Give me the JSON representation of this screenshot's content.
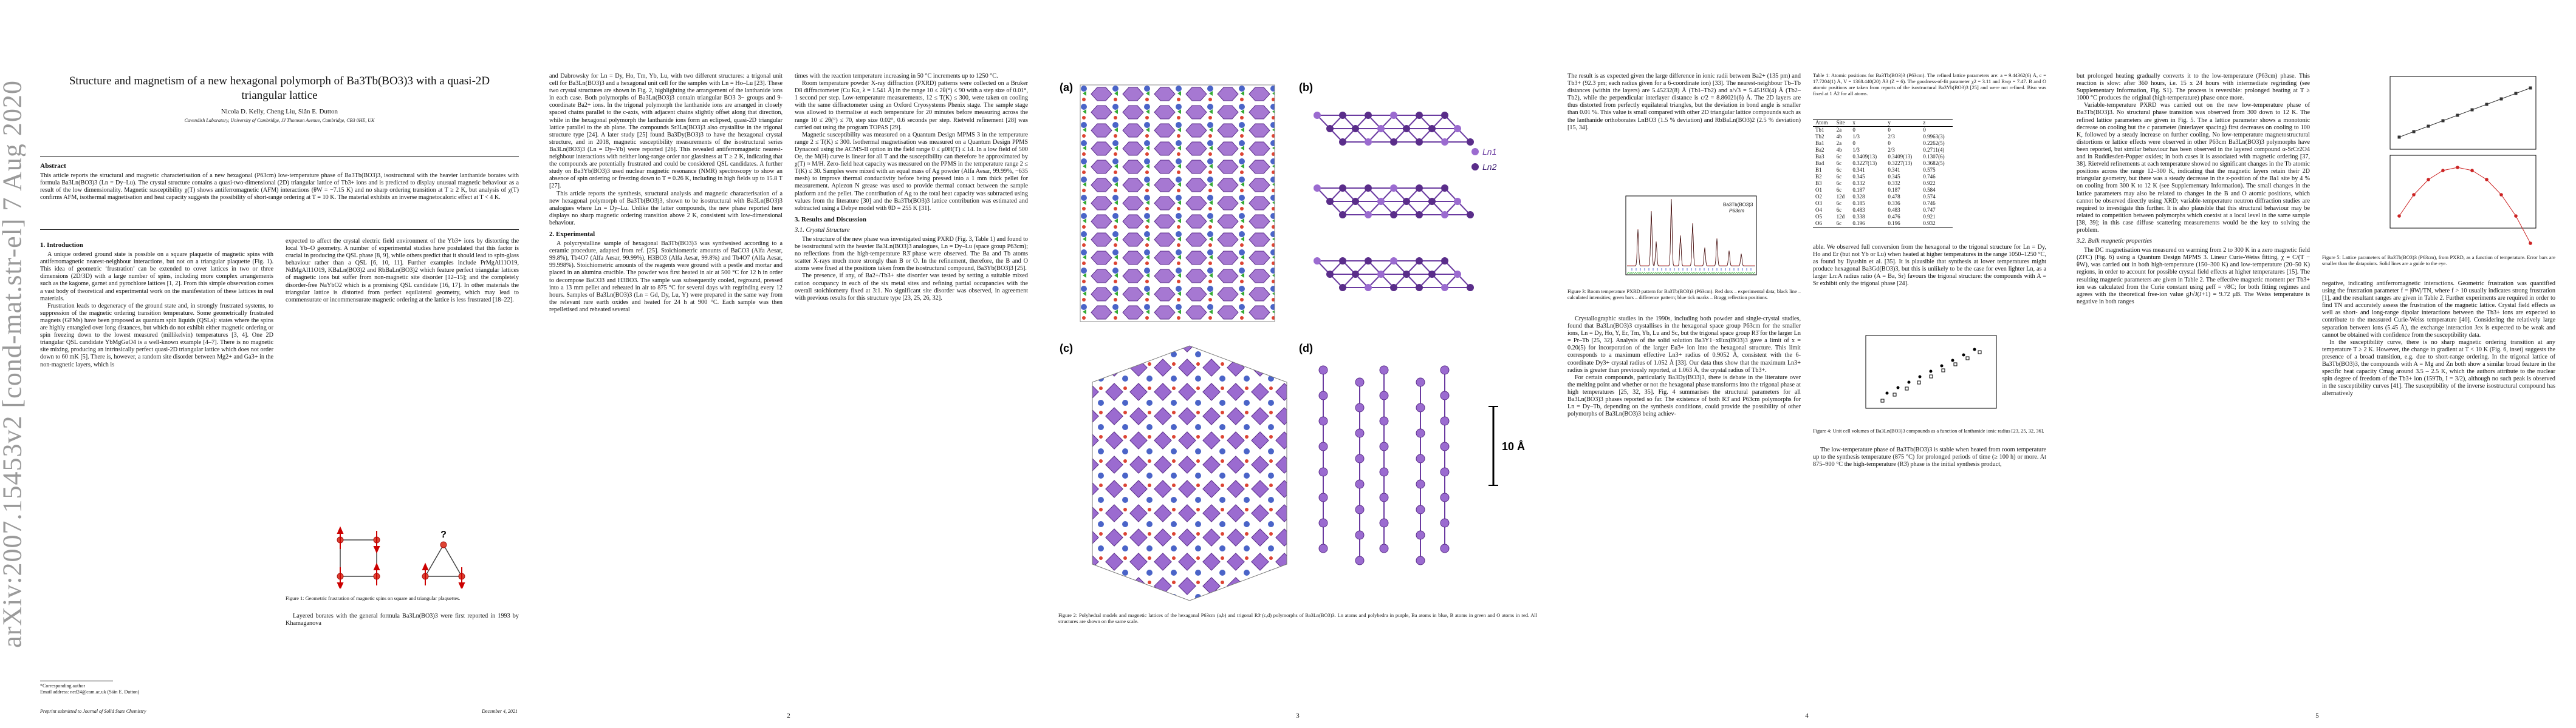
{
  "arxiv_stamp": "arXiv:2007.15453v2  [cond-mat.str-el]  7 Aug 2020",
  "page1": {
    "title": "Structure and magnetism of a new hexagonal polymorph of Ba3Tb(BO3)3 with a quasi-2D triangular lattice",
    "authors": "Nicola D. Kelly, Cheng Liu, Siân E. Dutton",
    "affiliation": "Cavendish Laboratory, University of Cambridge, JJ Thomson Avenue, Cambridge, CB3 0HE, UK",
    "abstract_heading": "Abstract",
    "abstract": "This article reports the structural and magnetic characterisation of a new hexagonal (P63cm) low-temperature phase of Ba3Tb(BO3)3, isostructural with the heavier lanthanide borates with formula Ba3Ln(BO3)3 (Ln = Dy–Lu). The crystal structure contains a quasi-two-dimensional (2D) triangular lattice of Tb3+ ions and is predicted to display unusual magnetic behaviour as a result of the low dimensionality. Magnetic susceptibility χ(T) shows antiferromagnetic (AFM) interactions (θW = −7.15 K) and no sharp ordering transition at T ≥ 2 K, but analysis of χ(T) confirms AFM, isothermal magnetisation and heat capacity suggests the possibility of short-range ordering at T = 10 K. The material exhibits an inverse magnetocaloric effect at T < 4 K.",
    "intro_heading": "1. Introduction",
    "col_left": [
      "A unique ordered ground state is possible on a square plaquette of magnetic spins with antiferromagnetic nearest-neighbour interactions, but not on a triangular plaquette (Fig. 1). This idea of geometric ‘frustration’ can be extended to cover lattices in two or three dimensions (2D/3D) with a large number of spins, including more complex arrangements such as the kagome, garnet and pyrochlore lattices [1, 2]. From this simple observation comes a vast body of theoretical and experimental work on the manifestation of these lattices in real materials.",
      "Frustration leads to degeneracy of the ground state and, in strongly frustrated systems, to suppression of the magnetic ordering transition temperature. Some geometrically frustrated magnets (GFMs) have been proposed as quantum spin liquids (QSLs): states where the spins are highly entangled over long distances, but which do not exhibit either magnetic ordering or spin freezing down to the lowest measured (millikelvin) temperatures [3, 4]. One 2D triangular QSL candidate YbMgGaO4 is a well-known example [4–7]. There is no magnetic site mixing, producing an intrinsically perfect quasi-2D triangular lattice which does not order down to 60 mK [5]. There is, however, a random site disorder between Mg2+ and Ga3+ in the non-magnetic layers, which is"
    ],
    "col_right": [
      "expected to affect the crystal electric field environment of the Yb3+ ions by distorting the local Yb–O geometry. A number of experimental studies have postulated that this factor is crucial in producing the QSL phase [8, 9], while others predict that it should lead to spin-glass behaviour rather than a QSL [6, 10, 11]. Further examples include PrMgAl11O19, NdMgAl11O19, KBaLn(BO3)2 and RbBaLn(BO3)2 which feature perfect triangular lattices of magnetic ions but suffer from non-magnetic site disorder [12–15]; and the completely disorder-free NaYbO2 which is a promising QSL candidate [16, 17]. In other materials the triangular lattice is distorted from perfect equilateral geometry, which may lead to commensurate or incommensurate magnetic ordering at the lattice is less frustrated [18–22]."
    ],
    "fig1_caption": "Figure 1: Geometric frustration of magnetic spins on square and triangular plaquettes.",
    "fig1_q": "?",
    "col_right_bottom": "Layered borates with the general formula Ba3Ln(BO3)3 were first reported in 1993 by Khamaganova",
    "footnote1": "*Corresponding author",
    "footnote2": "Email address: ned24@cam.ac.uk (Siân E. Dutton)",
    "journal": "Preprint submitted to Journal of Solid State Chemistry",
    "date": "December 4, 2021"
  },
  "page2": {
    "number": "2",
    "col_left": [
      "and Dabrowsky for Ln = Dy, Ho, Tm, Yb, Lu, with two different structures: a trigonal unit cell for Ba3Ln(BO3)3 and a hexagonal unit cell for the samples with Ln = Ho–Lu [23]. These two crystal structures are shown in Fig. 2, highlighting the arrangement of the lanthanide ions in each case. Both polymorphs of Ba3Ln(BO3)3 contain triangular BO3 3− groups and 9-coordinate Ba2+ ions. In the trigonal polymorph the lanthanide ions are arranged in closely spaced chains parallel to the c-axis, with adjacent chains slightly offset along that direction, while in the hexagonal polymorph the lanthanide ions form an eclipsed, quasi-2D triangular lattice parallel to the ab plane. The compounds Sr3Ln(BO3)3 also crystallise in the trigonal structure type [24]. A later study [25] found Ba3Dy(BO3)3 to have the hexagonal crystal structure, and in 2018, magnetic susceptibility measurements of the isostructural series Ba3Ln(BO3)3 (Ln = Dy–Yb) were reported [26]. This revealed antiferromagnetic nearest-neighbour interactions with neither long-range order nor glassiness at T ≥ 2 K, indicating that the compounds are potentially frustrated and could be considered QSL candidates. A further study on Ba3Yb(BO3)3 used nuclear magnetic resonance (NMR) spectroscopy to show an absence of spin ordering or freezing down to T = 0.26 K, including in high fields up to 15.8 T [27].",
      "This article reports the synthesis, structural analysis and magnetic characterisation of a new hexagonal polymorph of Ba3Tb(BO3)3, shown to be isostructural with Ba3Ln(BO3)3 analogues where Ln = Dy–Lu. Unlike the latter compounds, the new phase reported here displays no sharp magnetic ordering transition above 2 K, consistent with low-dimensional behaviour."
    ],
    "exp_heading": "2. Experimental",
    "col_left2": "A polycrystalline sample of hexagonal Ba3Tb(BO3)3 was synthesised according to a ceramic procedure, adapted from ref. [25]. Stoichiometric amounts of BaCO3 (Alfa Aesar, 99.8%), Tb4O7 (Alfa Aesar, 99.99%), H3BO3 (Alfa Aesar, 99.8%) and Tb4O7 (Alfa Aesar, 99.998%). Stoichiometric amounts of the reagents were ground with a pestle and mortar and placed in an alumina crucible. The powder was first heated in air at 500 °C for 12 h in order to decompose BaCO3 and H3BO3. The sample was subsequently cooled, reground, pressed into a 13 mm pellet and reheated in air to 875 °C for several days with regrinding every 12 hours. Samples of Ba3Ln(BO3)3 (Ln = Gd, Dy, Lu, Y) were prepared in the same way from the relevant rare earth oxides and heated for 24 h at 900 °C. Each sample was then repelletised and reheated several",
    "col_right": [
      "times with the reaction temperature increasing in 50 °C increments up to 1250 °C.",
      "Room temperature powder X-ray diffraction (PXRD) patterns were collected on a Bruker D8 diffractometer (Cu Kα, λ = 1.541 Å) in the range 10 ≤ 2θ(°) ≤ 90 with a step size of 0.01°, 1 second per step. Low-temperature measurements, 12 ≤ T(K) ≤ 300, were taken on cooling with the same diffractometer using an Oxford Cryosystems Phenix stage. The sample stage was allowed to thermalise at each temperature for 20 minutes before measuring across the range 10 ≤ 2θ(°) ≤ 70, step size 0.02°, 0.6 seconds per step. Rietveld refinement [28] was carried out using the program TOPAS [29].",
      "Magnetic susceptibility was measured on a Quantum Design MPMS 3 in the temperature range 2 ≤ T(K) ≤ 300. Isothermal magnetisation was measured on a Quantum Design PPMS Dynacool using the ACMS-II option in the field range 0 ≤ μ0H(T) ≤ 14. In a low field of 500 Oe, the M(H) curve is linear for all T and the susceptibility can therefore be approximated by χ(T) ≈ M/H. Zero-field heat capacity was measured on the PPMS in the temperature range 2 ≤ T(K) ≤ 30. Samples were mixed with an equal mass of Ag powder (Alfa Aesar, 99.99%, −635 mesh) to improve thermal conductivity before being pressed into a 1 mm thick pellet for measurement. Apiezon N grease was used to provide thermal contact between the sample platform and the pellet. The contribution of Ag to the total heat capacity was subtracted using values from the literature [30] and the Ba3Tb(BO3)3 lattice contribution was estimated and subtracted using a Debye model with θD = 255 K [31]."
    ],
    "results_heading": "3. Results and Discussion",
    "crystal_heading": "3.1. Crystal Structure",
    "col_right2": [
      "The structure of the new phase was investigated using PXRD (Fig. 3, Table 1) and found to be isostructural with the heavier Ba3Ln(BO3)3 analogues, Ln = Dy–Lu (space group P63cm); no reflections from the high-temperature R3̄ phase were observed. The Ba and Tb atoms scatter X-rays much more strongly than B or O. In the refinement, therefore, the B and O atoms were fixed at the positions taken from the isostructural compound, Ba3Yb(BO3)3 [25].",
      "The presence, if any, of Ba2+/Tb3+ site disorder was tested by setting a suitable mixed cation occupancy in each of the six metal sites and refining partial occupancies with the overall stoichiometry fixed at 3:1. No significant site disorder was observed, in agreement with previous results for this structure type [23, 25, 26, 32]."
    ]
  },
  "page3": {
    "number": "3",
    "panel_labels": [
      "(a)",
      "(b)",
      "(c)",
      "(d)"
    ],
    "legend": [
      "Ln1",
      "Ln2"
    ],
    "scale": "10 Å",
    "fig2_caption": "Figure 2: Polyhedral models and magnetic lattices of the hexagonal P63cm (a,b) and trigonal R3̄ (c,d) polymorphs of Ba3Ln(BO3)3. Ln atoms and polyhedra in purple, Ba atoms in blue, B atoms in green and O atoms in red. All structures are shown on the same scale."
  },
  "page4": {
    "number": "4",
    "col_left": [
      "The result is as expected given the large difference in ionic radii between Ba2+ (135 pm) and Tb3+ (92.3 pm; each radius given for a 6-coordinate ion) [33]. The nearest-neighbour Tb–Tb distances (within the layers) are 5.45232(8) Å (Tb1–Tb2) and a/√3 = 5.45193(4) Å (Tb2–Tb2), while the perpendicular interlayer distance is c/2 = 8.86021(6) Å. The 2D layers are thus distorted from perfectly equilateral triangles, but the deviation in bond angle is smaller than 0.01 %. This value is small compared with other 2D triangular lattice compounds such as the lanthanide orthoborates LnBO3 (1.5 % deviation) and RbBaLn(BO3)2 (2.5 % deviation) [15, 34]."
    ],
    "fig3_legend": [
      "Ba3Tb(BO3)3",
      "P63cm"
    ],
    "fig3_caption": "Figure 3: Room temperature PXRD pattern for Ba3Tb(BO3)3 (P63cm). Red dots – experimental data; black line – calculated intensities; green bars – difference pattern; blue tick marks – Bragg reflection positions.",
    "col_left2": [
      "Crystallographic studies in the 1990s, including both powder and single-crystal studies, found that Ba3Ln(BO3)3 crystallises in the hexagonal space group P63cm for the smaller ions, Ln = Dy, Ho, Y, Er, Tm, Yb, Lu and Sc, but the trigonal space group R3̄ for the larger Ln = Pr–Tb [25, 32]. Analysis of the solid solution Ba3Y1−xEux(BO3)3 gave a limit of x = 0.20(5) for incorporation of the larger Eu3+ ion into the hexagonal structure. This limit corresponds to a maximum effective Ln3+ radius of 0.9052 Å, consistent with the 6-coordinate Dy3+ crystal radius of 1.052 Å [33]. Our data thus show that the maximum Ln3+ radius is greater than previously reported, at 1.063 Å, the crystal radius of Tb3+.",
      "For certain compounds, particularly Ba3Dy(BO3)3, there is debate in the literature over the melting point and whether or not the hexagonal phase transforms into the trigonal phase at high temperatures [25, 32, 35]. Fig. 4 summarises the structural parameters for all Ba3Ln(BO3)3 phases reported so far. The existence of both R3̄ and P63cm polymorphs for Ln = Dy–Tb, depending on the synthesis conditions, could provide the possibility of other polymorphs of Ba3Ln(BO3)3 being achiev-"
    ],
    "table_caption": "Table 1: Atomic positions for Ba3Tb(BO3)3 (P63cm). The refined lattice parameters are: a = 9.44362(6) Å, c = 17.7204(1) Å, V = 1368.440(20) Å3 (Z = 6). The goodness-of-fit parameter χ2 = 3.11 and Rwp = 7.47. B and O atomic positions are taken from reports of the isostructural Ba3Yb(BO3)3 [25] and were not refined. Biso was fixed at 1 Å2 for all atoms.",
    "table_headers": [
      "Atom",
      "Site",
      "x",
      "y",
      "z"
    ],
    "table_rows": [
      [
        "Tb1",
        "2a",
        "0",
        "0",
        "0"
      ],
      [
        "Tb2",
        "4b",
        "1/3",
        "2/3",
        "0.9963(3)"
      ],
      [
        "Ba1",
        "2a",
        "0",
        "0",
        "0.2262(5)"
      ],
      [
        "Ba2",
        "4b",
        "1/3",
        "2/3",
        "0.2711(4)"
      ],
      [
        "Ba3",
        "6c",
        "0.3409(13)",
        "0.3409(13)",
        "0.1307(6)"
      ],
      [
        "Ba4",
        "6c",
        "0.3227(13)",
        "0.3227(13)",
        "0.3682(5)"
      ],
      [
        "B1",
        "6c",
        "0.341",
        "0.341",
        "0.575"
      ],
      [
        "B2",
        "6c",
        "0.345",
        "0.345",
        "0.746"
      ],
      [
        "B3",
        "6c",
        "0.332",
        "0.332",
        "0.922"
      ],
      [
        "O1",
        "6c",
        "0.187",
        "0.187",
        "0.584"
      ],
      [
        "O2",
        "12d",
        "0.328",
        "0.478",
        "0.574"
      ],
      [
        "O3",
        "6c",
        "0.185",
        "0.336",
        "0.746"
      ],
      [
        "O4",
        "6c",
        "0.483",
        "0.483",
        "0.747"
      ],
      [
        "O5",
        "12d",
        "0.338",
        "0.476",
        "0.921"
      ],
      [
        "O6",
        "6c",
        "0.196",
        "0.196",
        "0.932"
      ]
    ],
    "col_right": [
      "able. We observed full conversion from the hexagonal to the trigonal structure for Ln = Dy, Ho and Er (but not Yb or Lu) when heated at higher temperatures in the range 1050–1250 °C, as found by Ilyushin et al. [35]. It is plausible that synthesis at lower temperatures might produce hexagonal Ba3Gd(BO3)3, but this is unlikely to be the case for even lighter Ln, as a larger Ln:A radius ratio (A = Ba, Sr) favours the trigonal structure: the compounds with A = Sr exhibit only the trigonal phase [24]."
    ],
    "fig4_caption": "Figure 4: Unit cell volumes of Ba3Ln(BO3)3 compounds as a function of lanthanide ionic radius [23, 25, 32, 36].",
    "col_right2": [
      "The low-temperature phase of Ba3Tb(BO3)3 is stable when heated from room temperature up to the synthesis temperature (875 °C) for prolonged periods of time (≥ 100 h) or more. At 875–900 °C the high-temperature (R3̄) phase is the initial synthesis product,"
    ]
  },
  "page5": {
    "number": "5",
    "col_left": [
      "but prolonged heating gradually converts it to the low-temperature (P63cm) phase. This reaction is slow: after 360 hours, i.e. 15 x 24 hours with intermediate regrinding (see Supplementary Information, Fig. S1). The process is reversible: prolonged heating at T ≥ 1000 °C produces the original (high-temperature) phase once more.",
      "Variable-temperature PXRD was carried out on the new low-temperature phase of Ba3Tb(BO3)3. No structural phase transition was observed from 300 down to 12 K. The refined lattice parameters are given in Fig. 5. The a lattice parameter shows a monotonic decrease on cooling but the c parameter (interlayer spacing) first decreases on cooling to 100 K, followed by a steady increase on further cooling. No low-temperature magnetostructural distortions or lattice effects were observed in other P63cm Ba3Ln(BO3)3 polymorphs have been reported, but similar behaviour has been observed in the layered compound α-SrCr2O4 and in Ruddlesden-Popper oxides; in both cases it is associated with magnetic ordering [37, 38]. Rietveld refinements at each temperature showed no significant changes in the Tb atomic positions across the range 12–300 K, indicating that the magnetic layers retain their 2D triangular geometry, but there was a steady decrease in the z-position of the Ba1 site by 4 % on cooling from 300 K to 12 K (see Supplementary Information). The small changes in the lattice parameters may also be related to changes in the B and O atomic positions, which cannot be observed directly using XRD; variable-temperature neutron diffraction studies are required to investigate this further. It is also plausible that this structural behaviour may be related to competition between polymorphs which coexist at a local level in the same sample [38, 39]; in this case diffuse scattering measurements would be the key to solving the problem."
    ],
    "bulk_heading": "3.2. Bulk magnetic properties",
    "col_left2": "The DC magnetisation was measured on warming from 2 to 300 K in a zero magnetic field (ZFC) (Fig. 6) using a Quantum Design MPMS 3. Linear Curie-Weiss fitting, χ = C/(T − θW), was carried out in both high-temperature (150–300 K) and low-temperature (20–50 K) regions, in order to account for possible crystal field effects at higher temperatures [15]. The resulting magnetic parameters are given in Table 2. The effective magnetic moment per Tb3+ ion was calculated from the Curie constant using μeff = √8C; for both fitting regimes and agrees with the theoretical free-ion value gJ√J(J+1) = 9.72 μB. The Weiss temperature is negative in both ranges",
    "fig5_caption": "Figure 5: Lattice parameters of Ba3Tb(BO3)3 (P63cm), from PXRD, as a function of temperature. Error bars are smaller than the datapoints. Solid lines are a guide to the eye.",
    "col_right": [
      "negative, indicating antiferromagnetic interactions. Geometric frustration was quantified using the frustration parameter f = |θW|/TN, where f > 10 usually indicates strong frustration [1], and the resultant ranges are given in Table 2. Further experiments are required in order to find TN and accurately assess the frustration of the magnetic lattice. Crystal field effects as well as short- and long-range dipolar interactions between the Tb3+ ions are expected to contribute to the measured Curie-Weiss temperature [40]. Considering the relatively large separation between ions (5.45 Å), the exchange interaction Jex is expected to be weak and cannot be obtained with confidence from the susceptibility data.",
      "In the susceptibility curve, there is no sharp magnetic ordering transition at any temperature T ≥ 2 K. However, the change in gradient at T < 10 K (Fig. 6, inset) suggests the presence of a broad transition, e.g. due to short-range ordering. In the trigonal lattice of Ba3Tb(BO3)3, the compounds with A = Mg and Zn both show a similar broad feature in the specific heat capacity Cmag around 3.5 – 2.5 K, which the authors attribute to the nuclear spin degree of freedom of the Tb3+ ion (159Tb, I = 3/2), although no such peak is observed in the susceptibility curves [41]. The susceptibility of the inverse isostructural compound has alternatively"
    ]
  }
}
